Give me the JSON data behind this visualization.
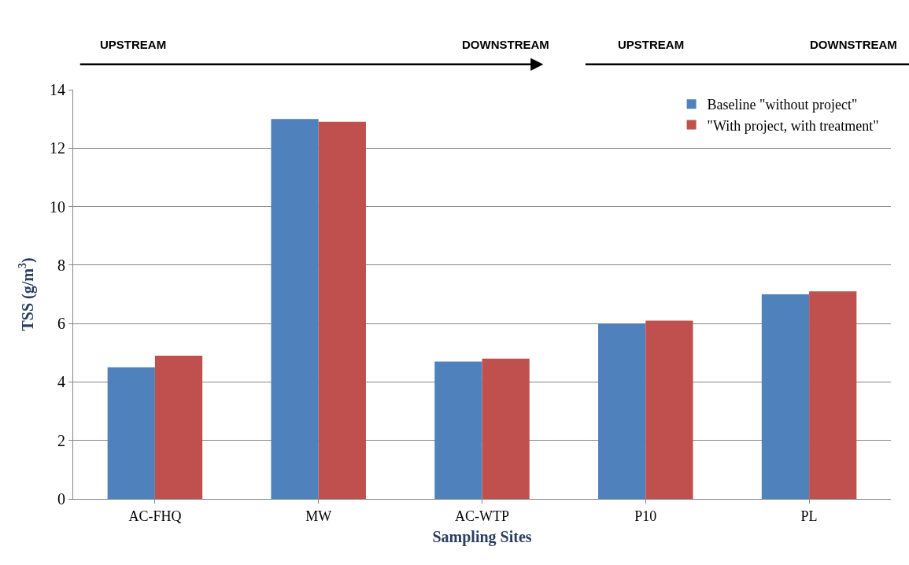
{
  "chart_data": {
    "type": "bar",
    "xlabel": "Sampling Sites",
    "ylabel": "TSS (g/m$^{3}$)",
    "categories": [
      "AC-FHQ",
      "MW",
      "AC-WTP",
      "P10",
      "PL"
    ],
    "series": [
      {
        "name": "Baseline \"without project\"",
        "color": "#4f81bd",
        "values": [
          4.5,
          13.0,
          4.7,
          6.0,
          7.0
        ]
      },
      {
        "name": "\"With project, with treatment\"",
        "color": "#c0504d",
        "values": [
          4.9,
          12.9,
          4.8,
          6.1,
          7.1
        ]
      }
    ],
    "ylim": [
      0,
      14
    ],
    "yticks": [
      0,
      2,
      4,
      6,
      8,
      10,
      12,
      14
    ],
    "grid": "y",
    "legend": "top right",
    "annotations": [
      "UPSTREAM",
      "DOWNSTREAM",
      "UPSTREAM",
      "DOWNSTREAM"
    ]
  }
}
